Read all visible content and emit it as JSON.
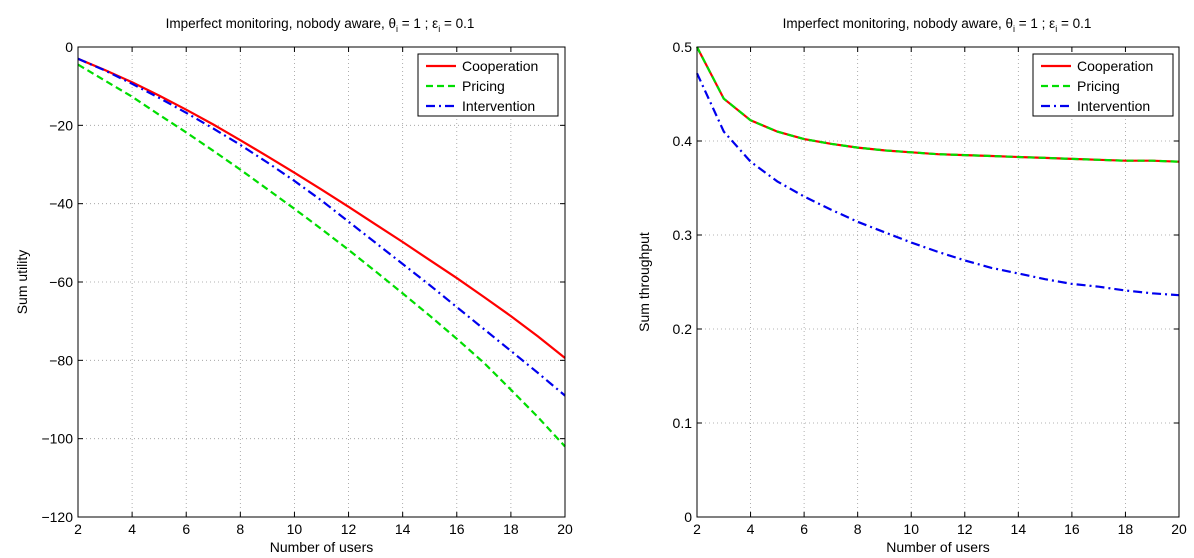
{
  "chart_data": [
    {
      "type": "line",
      "title_main": "Imperfect monitoring, nobody aware, θ",
      "title_sub1": "i",
      "title_mid": " = 1 ; ε",
      "title_sub2": "i",
      "title_end": " = 0.1",
      "xlabel": "Number of users",
      "ylabel": "Sum utility",
      "xlim": [
        2,
        20
      ],
      "ylim": [
        -120,
        0
      ],
      "xticks": [
        "2",
        "4",
        "6",
        "8",
        "10",
        "12",
        "14",
        "16",
        "18",
        "20"
      ],
      "yticks": [
        "0",
        "−20",
        "−40",
        "−60",
        "−80",
        "−100",
        "−120"
      ],
      "grid": true,
      "legend_position": "top-right",
      "x": [
        2,
        3,
        4,
        5,
        6,
        7,
        8,
        9,
        10,
        11,
        12,
        13,
        14,
        15,
        16,
        17,
        18,
        19,
        20
      ],
      "series": [
        {
          "name": "Cooperation",
          "color": "#ff0000",
          "style": "solid",
          "values": [
            -3.0,
            -5.9,
            -9.0,
            -12.4,
            -16.0,
            -19.8,
            -23.8,
            -27.9,
            -32.1,
            -36.4,
            -40.8,
            -45.3,
            -49.8,
            -54.4,
            -59.0,
            -63.8,
            -68.7,
            -73.9,
            -79.4
          ]
        },
        {
          "name": "Pricing",
          "color": "#00dd00",
          "style": "dashed",
          "values": [
            -4.5,
            -8.6,
            -12.7,
            -17.3,
            -21.8,
            -26.5,
            -31.3,
            -36.3,
            -41.3,
            -46.5,
            -51.8,
            -57.3,
            -62.9,
            -68.6,
            -74.5,
            -80.6,
            -87.5,
            -94.5,
            -102.0
          ]
        },
        {
          "name": "Intervention",
          "color": "#0000ee",
          "style": "dashdot",
          "values": [
            -3.0,
            -6.0,
            -9.4,
            -13.0,
            -16.8,
            -20.8,
            -25.0,
            -29.5,
            -34.2,
            -39.2,
            -44.6,
            -50.0,
            -55.4,
            -60.8,
            -66.4,
            -72.0,
            -77.6,
            -83.2,
            -89.0
          ]
        }
      ]
    },
    {
      "type": "line",
      "title_main": "Imperfect monitoring, nobody aware, θ",
      "title_sub1": "i",
      "title_mid": " = 1 ; ε",
      "title_sub2": "i",
      "title_end": " = 0.1",
      "xlabel": "Number of users",
      "ylabel": "Sum throughput",
      "xlim": [
        2,
        20
      ],
      "ylim": [
        0,
        0.5
      ],
      "xticks": [
        "2",
        "4",
        "6",
        "8",
        "10",
        "12",
        "14",
        "16",
        "18",
        "20"
      ],
      "yticks": [
        "0",
        "0.1",
        "0.2",
        "0.3",
        "0.4",
        "0.5"
      ],
      "grid": true,
      "legend_position": "top-right",
      "x": [
        2,
        3,
        4,
        5,
        6,
        7,
        8,
        9,
        10,
        11,
        12,
        13,
        14,
        15,
        16,
        17,
        18,
        19,
        20
      ],
      "series": [
        {
          "name": "Cooperation",
          "color": "#ff0000",
          "style": "solid",
          "values": [
            0.5,
            0.445,
            0.422,
            0.41,
            0.402,
            0.397,
            0.393,
            0.39,
            0.388,
            0.386,
            0.385,
            0.384,
            0.383,
            0.382,
            0.381,
            0.38,
            0.379,
            0.379,
            0.378
          ]
        },
        {
          "name": "Pricing",
          "color": "#00dd00",
          "style": "dashed",
          "values": [
            0.5,
            0.445,
            0.422,
            0.41,
            0.402,
            0.397,
            0.393,
            0.39,
            0.388,
            0.386,
            0.385,
            0.384,
            0.383,
            0.382,
            0.381,
            0.38,
            0.379,
            0.379,
            0.378
          ]
        },
        {
          "name": "Intervention",
          "color": "#0000ee",
          "style": "dashdot",
          "values": [
            0.472,
            0.41,
            0.378,
            0.357,
            0.341,
            0.327,
            0.314,
            0.303,
            0.292,
            0.282,
            0.273,
            0.265,
            0.259,
            0.253,
            0.248,
            0.245,
            0.241,
            0.238,
            0.236
          ]
        }
      ]
    }
  ]
}
